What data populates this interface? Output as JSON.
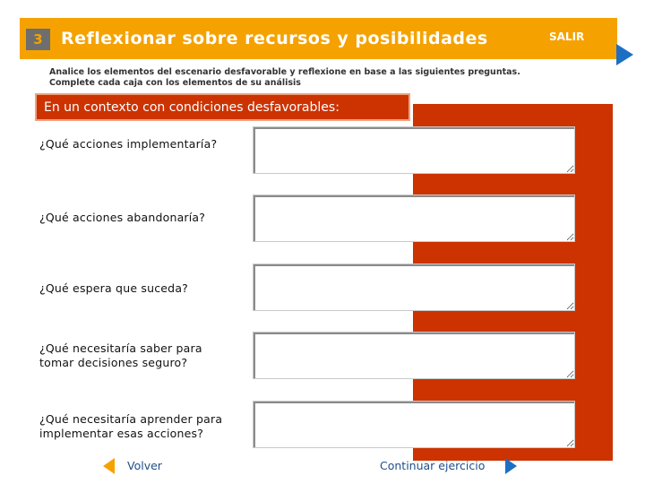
{
  "header": {
    "step_number": "3",
    "title": "Reflexionar sobre recursos y posibilidades",
    "exit_label": "SALIR"
  },
  "instructions": {
    "line1": "Analice los elementos del escenario desfavorable y reflexione en base a las siguientes preguntas.",
    "line2": "Complete cada caja con los elementos de su análisis"
  },
  "context_label": "En un contexto con condiciones desfavorables:",
  "questions": [
    {
      "label": "¿Qué acciones implementaría?",
      "answer": ""
    },
    {
      "label": "¿Qué acciones abandonaría?",
      "answer": ""
    },
    {
      "label": "¿Qué espera que suceda?",
      "answer": ""
    },
    {
      "label": "¿Qué necesitaría saber para tomar decisiones seguro?",
      "answer": ""
    },
    {
      "label": "¿Qué necesitaría aprender para implementar esas acciones?",
      "answer": ""
    }
  ],
  "footer": {
    "back_label": "Volver",
    "continue_label": "Continuar ejercicio"
  },
  "colors": {
    "header": "#f5a200",
    "panel": "#cc3300",
    "nav_arrow": "#1d6fc4",
    "back_arrow": "#f5a200",
    "link_text": "#1f4e86"
  },
  "icons": {
    "exit": "arrow-right-icon",
    "back": "arrow-left-icon",
    "continue": "arrow-right-icon"
  }
}
